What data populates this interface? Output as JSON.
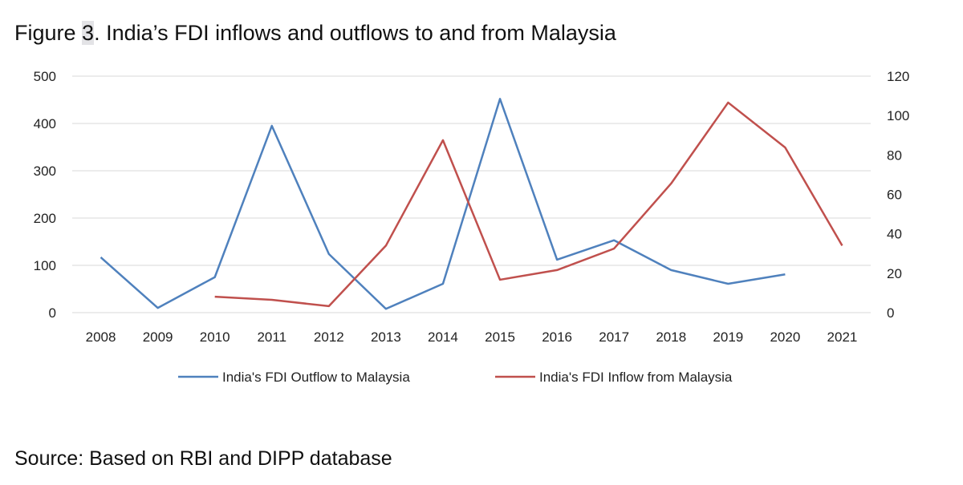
{
  "title_prefix": "Figure ",
  "title_number": "3",
  "title_rest": ". India’s FDI inflows and outflows to and from Malaysia",
  "source": "Source: Based on RBI and DIPP database",
  "chart_data": {
    "type": "line",
    "title": "India’s FDI inflows and outflows to and from Malaysia",
    "categories": [
      "2008",
      "2009",
      "2010",
      "2011",
      "2012",
      "2013",
      "2014",
      "2015",
      "2016",
      "2017",
      "2018",
      "2019",
      "2020",
      "2021"
    ],
    "y_left": {
      "min": 0,
      "max": 500,
      "ticks": [
        0,
        100,
        200,
        300,
        400,
        500
      ]
    },
    "y_right": {
      "min": 0,
      "max": 120,
      "ticks": [
        0,
        20,
        40,
        60,
        80,
        100,
        120
      ]
    },
    "grid": true,
    "legend_position": "bottom",
    "series": [
      {
        "name": "India's FDI Outflow to Malaysia",
        "axis": "left",
        "color": "#4f81bd",
        "values": [
          117,
          10,
          75,
          395,
          124,
          8,
          61,
          452,
          112,
          153,
          90,
          61,
          81,
          null
        ]
      },
      {
        "name": "India's FDI Inflow from Malaysia",
        "axis": "right",
        "color": "#c0504d",
        "values": [
          null,
          null,
          8.1,
          6.5,
          3.3,
          34,
          87.5,
          16.7,
          21.6,
          32.5,
          65.5,
          106.6,
          83.8,
          34
        ]
      }
    ]
  }
}
